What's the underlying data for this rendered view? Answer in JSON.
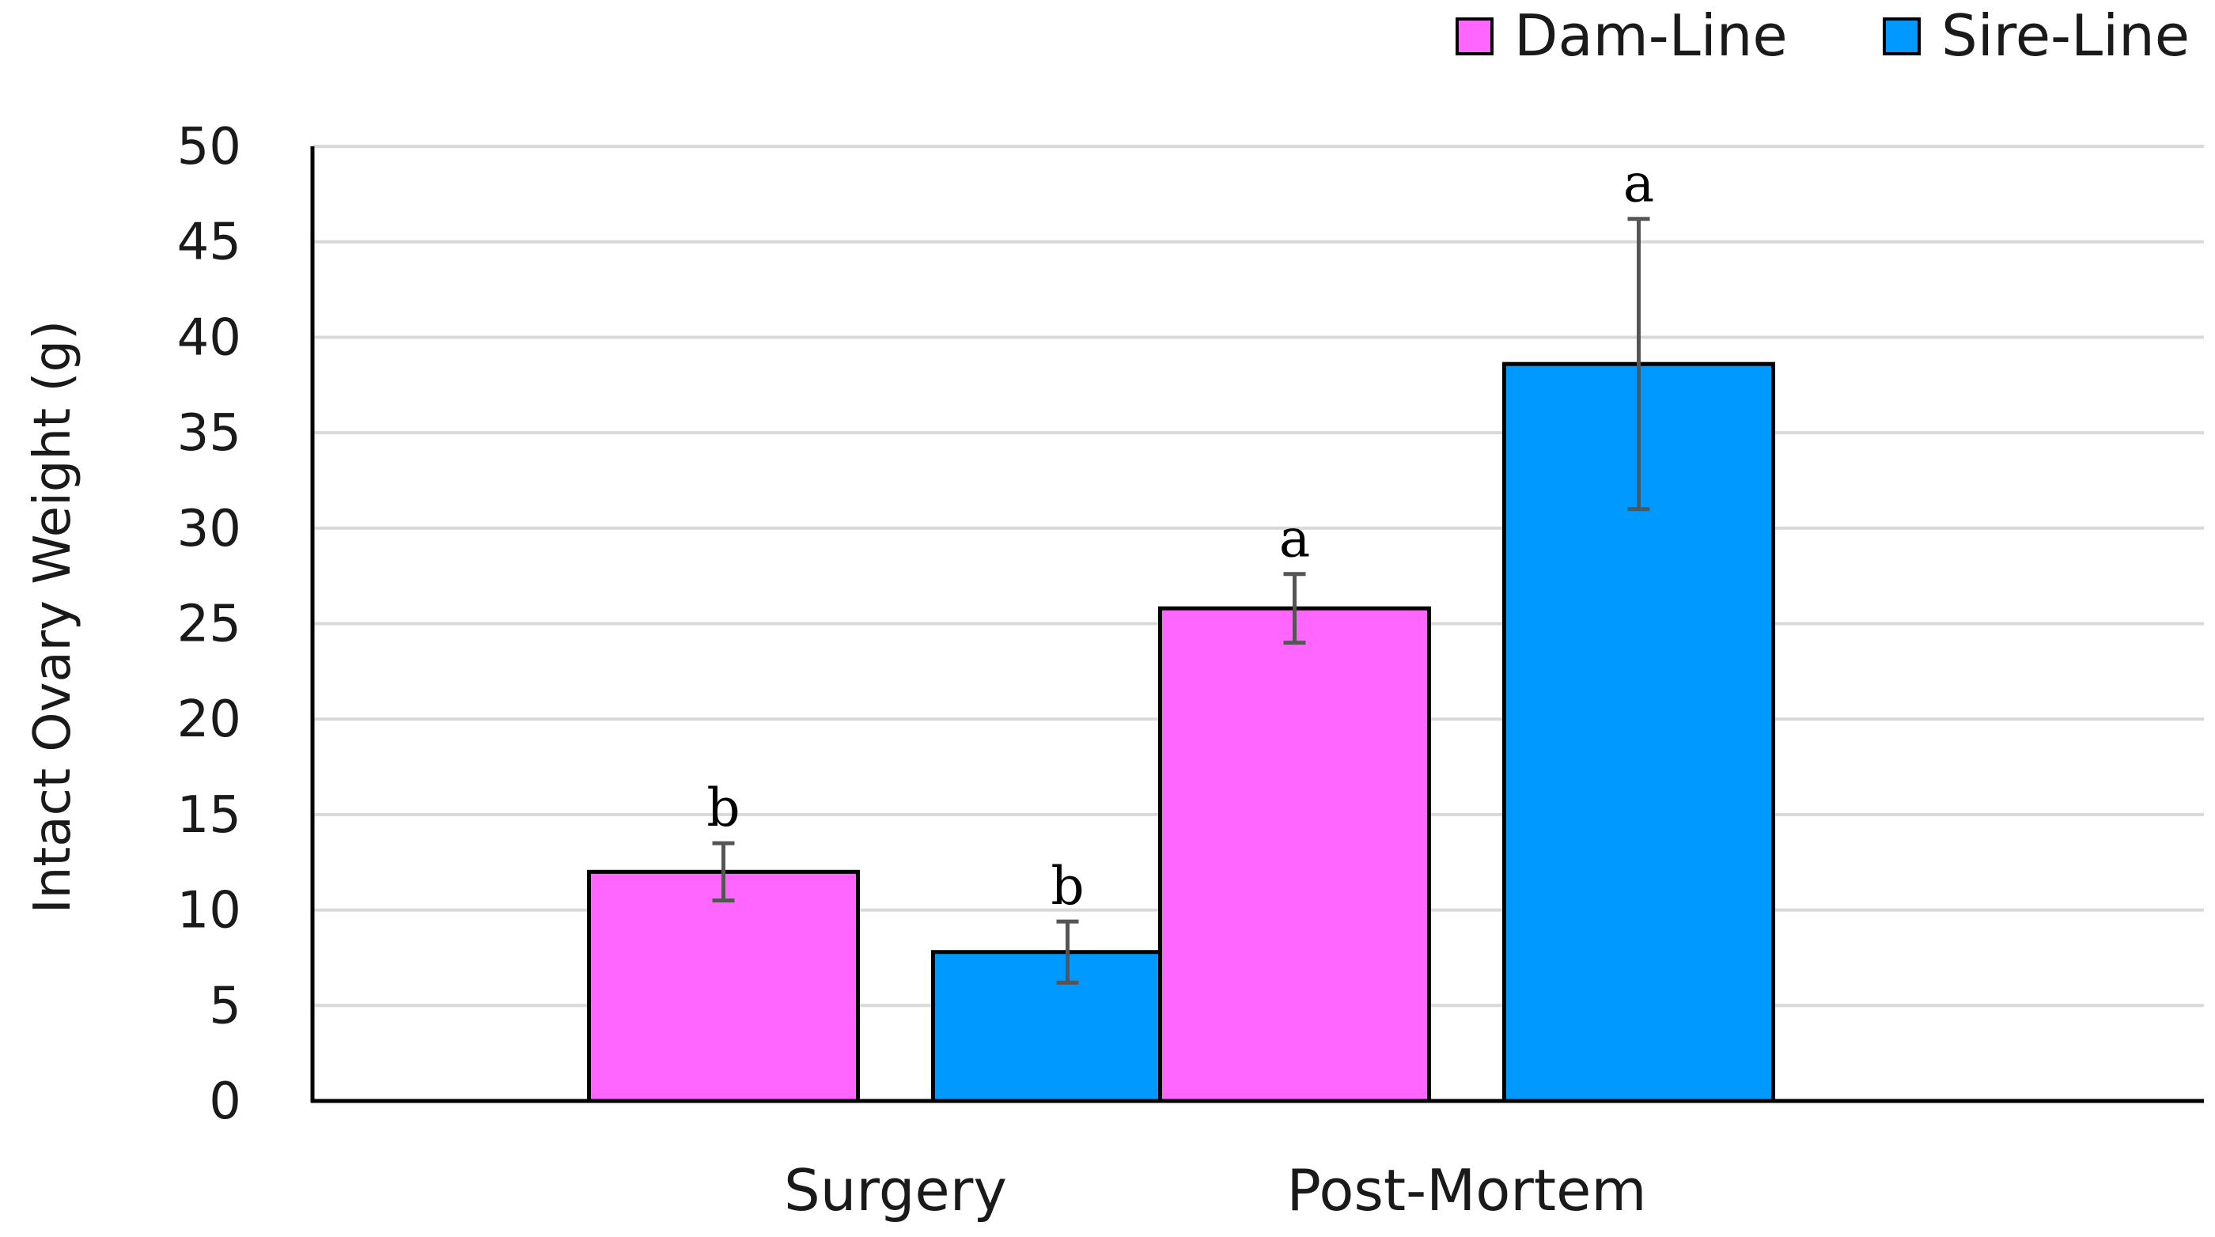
{
  "chart_data": {
    "type": "bar",
    "title": "",
    "xlabel": "",
    "ylabel": "Intact Ovary Weight (g)",
    "ylim": [
      0,
      50
    ],
    "yticks": [
      0,
      5,
      10,
      15,
      20,
      25,
      30,
      35,
      40,
      45,
      50
    ],
    "grid": true,
    "legend_position": "top-right",
    "categories": [
      "Surgery",
      "Post-Mortem"
    ],
    "series": [
      {
        "name": "Dam-Line",
        "color": "#ff66ff",
        "values": [
          12,
          25.8
        ],
        "errors": [
          1.5,
          1.8
        ],
        "labels": [
          "b",
          "a"
        ]
      },
      {
        "name": "Sire-Line",
        "color": "#0099ff",
        "values": [
          7.8,
          38.6
        ],
        "errors": [
          1.6,
          7.6
        ],
        "labels": [
          "b",
          "a"
        ]
      }
    ]
  }
}
